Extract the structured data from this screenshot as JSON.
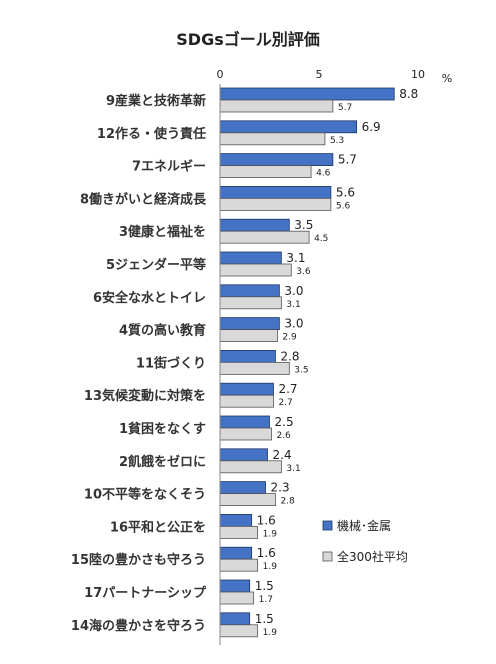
{
  "chart_data": {
    "type": "bar",
    "orientation": "horizontal",
    "title": "SDGsゴール別評価",
    "unit": "%",
    "xlim": [
      0,
      10
    ],
    "xticks": [
      "0",
      "5",
      "10"
    ],
    "grid": false,
    "legend_position": "bottom-right",
    "categories": [
      "9産業と技術革新",
      "12作る・使う責任",
      "7エネルギー",
      "8働きがいと経済成長",
      "3健康と福祉を",
      "5ジェンダー平等",
      "6安全な水とトイレ",
      "4質の高い教育",
      "11街づくり",
      "13気候変動に対策を",
      "1貧困をなくす",
      "2飢餓をゼロに",
      "10不平等をなくそう",
      "16平和と公正を",
      "15陸の豊かさも守ろう",
      "17パートナーシップ",
      "14海の豊かさを守ろう"
    ],
    "series": [
      {
        "name": "機械･金属",
        "color": "#4472C4",
        "values": [
          8.8,
          6.9,
          5.7,
          5.6,
          3.5,
          3.1,
          3.0,
          3.0,
          2.8,
          2.7,
          2.5,
          2.4,
          2.3,
          1.6,
          1.6,
          1.5,
          1.5
        ],
        "labels": [
          "8.8",
          "6.9",
          "5.7",
          "5.6",
          "3.5",
          "3.1",
          "3.0",
          "3.0",
          "2.8",
          "2.7",
          "2.5",
          "2.4",
          "2.3",
          "1.6",
          "1.6",
          "1.5",
          "1.5"
        ]
      },
      {
        "name": "全300社平均",
        "color": "#D9D9D9",
        "values": [
          5.7,
          5.3,
          4.6,
          5.6,
          4.5,
          3.6,
          3.1,
          2.9,
          3.5,
          2.7,
          2.6,
          3.1,
          2.8,
          1.9,
          1.9,
          1.7,
          1.9
        ],
        "labels": [
          "5.7",
          "5.3",
          "4.6",
          "5.6",
          "4.5",
          "3.6",
          "3.1",
          "2.9",
          "3.5",
          "2.7",
          "2.6",
          "3.1",
          "2.8",
          "1.9",
          "1.9",
          "1.7",
          "1.9"
        ]
      }
    ]
  }
}
